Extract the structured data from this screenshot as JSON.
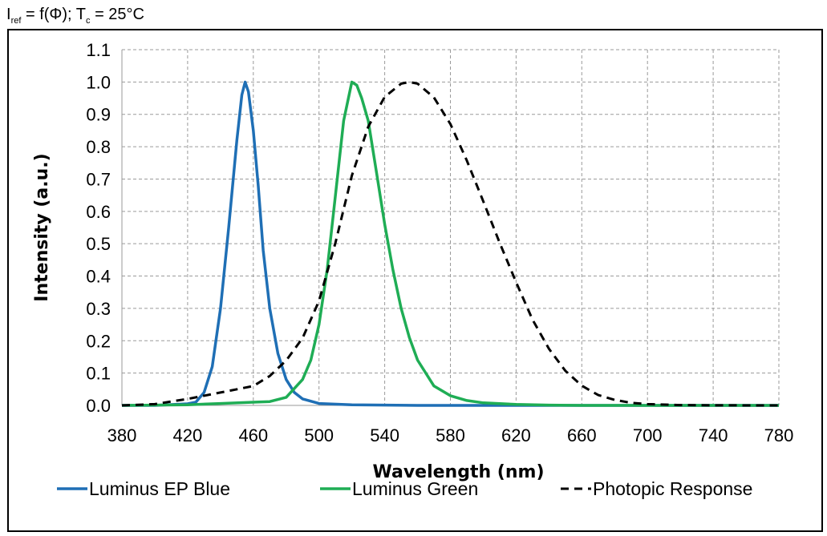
{
  "header": {
    "title_i": "I",
    "title_ref": "ref",
    "title_mid": " = f(Φ); T",
    "title_c": "c",
    "title_end": " = 25°C"
  },
  "chart_data": {
    "type": "line",
    "xlabel": "Wavelength (nm)",
    "ylabel": "Intensity (a.u.)",
    "xlim": [
      380,
      780
    ],
    "ylim": [
      0.0,
      1.1
    ],
    "x_ticks": [
      380,
      420,
      460,
      500,
      540,
      580,
      620,
      660,
      700,
      740,
      780
    ],
    "y_ticks": [
      "0.0",
      "0.1",
      "0.2",
      "0.3",
      "0.4",
      "0.5",
      "0.6",
      "0.7",
      "0.8",
      "0.9",
      "1.0",
      "1.1"
    ],
    "grid": true,
    "legend_position": "bottom",
    "series": [
      {
        "name": "Luminus EP Blue",
        "color": "#1f6fb5",
        "style": "solid",
        "points": [
          [
            380,
            0
          ],
          [
            400,
            0
          ],
          [
            420,
            0.005
          ],
          [
            425,
            0.01
          ],
          [
            430,
            0.04
          ],
          [
            435,
            0.12
          ],
          [
            440,
            0.3
          ],
          [
            445,
            0.55
          ],
          [
            450,
            0.82
          ],
          [
            453,
            0.96
          ],
          [
            455,
            1.0
          ],
          [
            457,
            0.97
          ],
          [
            460,
            0.85
          ],
          [
            463,
            0.68
          ],
          [
            466,
            0.48
          ],
          [
            470,
            0.3
          ],
          [
            475,
            0.16
          ],
          [
            480,
            0.08
          ],
          [
            485,
            0.04
          ],
          [
            490,
            0.02
          ],
          [
            500,
            0.006
          ],
          [
            520,
            0.002
          ],
          [
            560,
            0
          ],
          [
            600,
            0
          ],
          [
            700,
            0
          ],
          [
            780,
            0
          ]
        ]
      },
      {
        "name": "Luminus Green",
        "color": "#1fad55",
        "style": "solid",
        "points": [
          [
            380,
            0
          ],
          [
            420,
            0.002
          ],
          [
            440,
            0.006
          ],
          [
            460,
            0.01
          ],
          [
            470,
            0.012
          ],
          [
            480,
            0.025
          ],
          [
            490,
            0.08
          ],
          [
            495,
            0.14
          ],
          [
            500,
            0.25
          ],
          [
            505,
            0.42
          ],
          [
            510,
            0.65
          ],
          [
            515,
            0.88
          ],
          [
            520,
            1.0
          ],
          [
            523,
            0.99
          ],
          [
            526,
            0.95
          ],
          [
            530,
            0.88
          ],
          [
            535,
            0.72
          ],
          [
            540,
            0.56
          ],
          [
            545,
            0.42
          ],
          [
            550,
            0.3
          ],
          [
            555,
            0.21
          ],
          [
            560,
            0.14
          ],
          [
            570,
            0.06
          ],
          [
            580,
            0.03
          ],
          [
            590,
            0.015
          ],
          [
            600,
            0.008
          ],
          [
            620,
            0.003
          ],
          [
            640,
            0.001
          ],
          [
            660,
            0
          ],
          [
            780,
            0
          ]
        ]
      },
      {
        "name": "Photopic Response",
        "color": "#000000",
        "style": "dashed",
        "points": [
          [
            380,
            0
          ],
          [
            400,
            0.004
          ],
          [
            420,
            0.02
          ],
          [
            440,
            0.04
          ],
          [
            460,
            0.06
          ],
          [
            470,
            0.091
          ],
          [
            480,
            0.139
          ],
          [
            490,
            0.208
          ],
          [
            500,
            0.323
          ],
          [
            510,
            0.503
          ],
          [
            520,
            0.71
          ],
          [
            530,
            0.862
          ],
          [
            540,
            0.954
          ],
          [
            550,
            0.995
          ],
          [
            555,
            1.0
          ],
          [
            560,
            0.995
          ],
          [
            570,
            0.952
          ],
          [
            580,
            0.87
          ],
          [
            590,
            0.757
          ],
          [
            600,
            0.631
          ],
          [
            610,
            0.503
          ],
          [
            620,
            0.381
          ],
          [
            630,
            0.265
          ],
          [
            640,
            0.175
          ],
          [
            650,
            0.107
          ],
          [
            660,
            0.061
          ],
          [
            670,
            0.032
          ],
          [
            680,
            0.017
          ],
          [
            690,
            0.008
          ],
          [
            700,
            0.004
          ],
          [
            720,
            0.001
          ],
          [
            740,
            0.0003
          ],
          [
            780,
            0
          ]
        ]
      }
    ]
  }
}
